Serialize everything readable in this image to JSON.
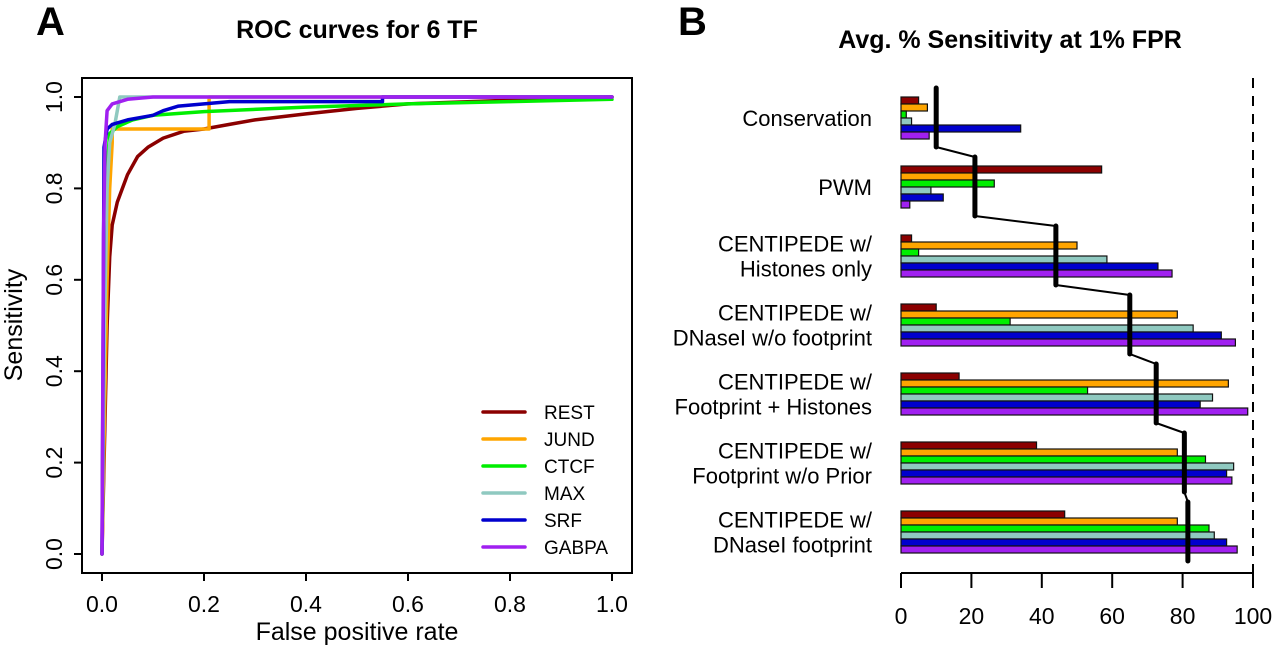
{
  "panels": {
    "a_letter": "A",
    "b_letter": "B"
  },
  "chart_data": [
    {
      "type": "line",
      "title": "ROC curves for 6 TF",
      "xlabel": "False positive rate",
      "ylabel": "Sensitivity",
      "xlim": [
        0,
        1
      ],
      "ylim": [
        0,
        1
      ],
      "xticks": [
        "0.0",
        "0.2",
        "0.4",
        "0.6",
        "0.8",
        "1.0"
      ],
      "yticks": [
        "0.0",
        "0.2",
        "0.4",
        "0.6",
        "0.8",
        "1.0"
      ],
      "grid": false,
      "legend_position": "bottom-right",
      "series": [
        {
          "name": "REST",
          "color": "#8B0000",
          "points": [
            [
              0,
              0
            ],
            [
              0.01,
              0.5
            ],
            [
              0.015,
              0.65
            ],
            [
              0.02,
              0.72
            ],
            [
              0.03,
              0.77
            ],
            [
              0.04,
              0.8
            ],
            [
              0.05,
              0.83
            ],
            [
              0.07,
              0.87
            ],
            [
              0.09,
              0.89
            ],
            [
              0.12,
              0.91
            ],
            [
              0.16,
              0.925
            ],
            [
              0.2,
              0.93
            ],
            [
              0.25,
              0.94
            ],
            [
              0.3,
              0.95
            ],
            [
              0.4,
              0.963
            ],
            [
              0.5,
              0.975
            ],
            [
              0.6,
              0.985
            ],
            [
              0.8,
              0.993
            ],
            [
              1.0,
              1.0
            ]
          ]
        },
        {
          "name": "JUND",
          "color": "#FFA500",
          "points": [
            [
              0,
              0
            ],
            [
              0.005,
              0.3
            ],
            [
              0.01,
              0.6
            ],
            [
              0.015,
              0.8
            ],
            [
              0.02,
              0.9
            ],
            [
              0.02,
              0.93
            ],
            [
              0.21,
              0.93
            ],
            [
              0.21,
              1.0
            ],
            [
              1.0,
              1.0
            ]
          ]
        },
        {
          "name": "CTCF",
          "color": "#00EE00",
          "points": [
            [
              0,
              0
            ],
            [
              0.005,
              0.6
            ],
            [
              0.01,
              0.85
            ],
            [
              0.015,
              0.92
            ],
            [
              0.03,
              0.935
            ],
            [
              0.06,
              0.95
            ],
            [
              0.1,
              0.96
            ],
            [
              0.2,
              0.968
            ],
            [
              0.4,
              0.978
            ],
            [
              0.6,
              0.985
            ],
            [
              0.8,
              0.99
            ],
            [
              1.0,
              0.995
            ]
          ]
        },
        {
          "name": "MAX",
          "color": "#8FC9C0",
          "points": [
            [
              0,
              0
            ],
            [
              0.005,
              0.5
            ],
            [
              0.01,
              0.8
            ],
            [
              0.015,
              0.9
            ],
            [
              0.025,
              0.94
            ],
            [
              0.03,
              0.97
            ],
            [
              0.035,
              1.0
            ],
            [
              1.0,
              1.0
            ]
          ]
        },
        {
          "name": "SRF",
          "color": "#0000CD",
          "points": [
            [
              0,
              0
            ],
            [
              0.002,
              0.4
            ],
            [
              0.004,
              0.89
            ],
            [
              0.01,
              0.93
            ],
            [
              0.02,
              0.94
            ],
            [
              0.05,
              0.95
            ],
            [
              0.1,
              0.96
            ],
            [
              0.12,
              0.97
            ],
            [
              0.15,
              0.98
            ],
            [
              0.2,
              0.985
            ],
            [
              0.25,
              0.99
            ],
            [
              0.55,
              0.99
            ],
            [
              0.55,
              1.0
            ],
            [
              1.0,
              1.0
            ]
          ]
        },
        {
          "name": "GABPA",
          "color": "#A020F0",
          "points": [
            [
              0,
              0
            ],
            [
              0.003,
              0.7
            ],
            [
              0.006,
              0.9
            ],
            [
              0.01,
              0.97
            ],
            [
              0.02,
              0.985
            ],
            [
              0.05,
              0.995
            ],
            [
              0.1,
              1.0
            ],
            [
              1.0,
              1.0
            ]
          ]
        }
      ]
    },
    {
      "type": "bar",
      "orientation": "horizontal",
      "title": "Avg. % Sensitivity at 1% FPR",
      "xlim": [
        0,
        100
      ],
      "xticks": [
        "0",
        "20",
        "40",
        "60",
        "80",
        "100"
      ],
      "reference_line": 100,
      "grid": false,
      "categories": [
        [
          "Conservation"
        ],
        [
          "PWM"
        ],
        [
          "CENTIPEDE w/",
          "Histones only"
        ],
        [
          "CENTIPEDE w/",
          "DNaseI w/o footprint"
        ],
        [
          "CENTIPEDE w/",
          "Footprint + Histones"
        ],
        [
          "CENTIPEDE w/",
          "Footprint w/o Prior"
        ],
        [
          "CENTIPEDE w/",
          "DNaseI footprint"
        ]
      ],
      "series": [
        {
          "name": "REST",
          "color": "#8B0000",
          "values": [
            5,
            57,
            3,
            10,
            16.5,
            38.5,
            46.5
          ]
        },
        {
          "name": "JUND",
          "color": "#FFA500",
          "values": [
            7.5,
            20.5,
            50,
            78.5,
            93,
            78.5,
            78.5
          ]
        },
        {
          "name": "CTCF",
          "color": "#00EE00",
          "values": [
            1.5,
            26.5,
            5,
            31,
            53,
            86.5,
            87.5
          ]
        },
        {
          "name": "MAX",
          "color": "#8FC9C0",
          "values": [
            3,
            8.5,
            58.5,
            83,
            88.5,
            94.5,
            89
          ]
        },
        {
          "name": "SRF",
          "color": "#0000CD",
          "values": [
            34,
            12,
            73,
            91,
            85,
            92.5,
            92.5
          ]
        },
        {
          "name": "GABPA",
          "color": "#A020F0",
          "values": [
            8,
            2.5,
            77,
            95,
            98.5,
            94,
            95.5
          ]
        }
      ],
      "averages": [
        10,
        21,
        44,
        65,
        72.5,
        80.5,
        81.5
      ]
    }
  ]
}
